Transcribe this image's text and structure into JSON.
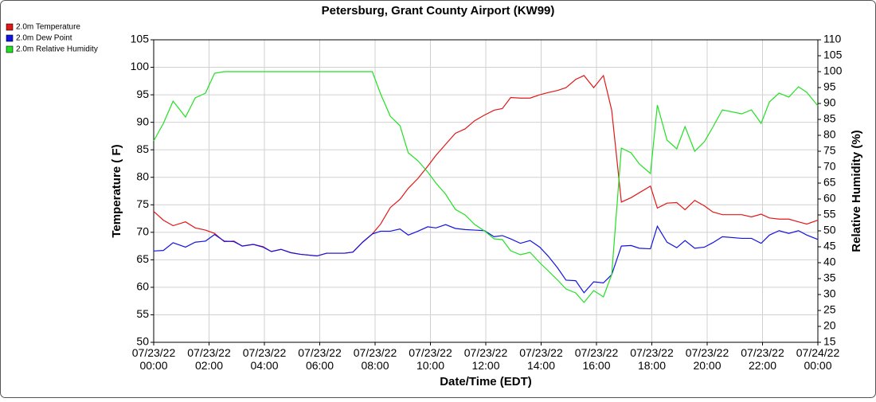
{
  "chart_data": {
    "type": "line",
    "title": "Petersburg, Grant County Airport (KW99)",
    "x_label": "Date/Time (EDT)",
    "y_label": "Temperature ( F)",
    "y2_label": "Relative Humidity (%)",
    "x": [
      0,
      0.35,
      0.7,
      1.15,
      1.5,
      1.87,
      2.2,
      2.55,
      2.9,
      3.2,
      3.6,
      3.95,
      4.25,
      4.6,
      4.95,
      5.3,
      5.9,
      6.25,
      6.9,
      7.2,
      7.55,
      7.9,
      8.2,
      8.55,
      8.9,
      9.2,
      9.55,
      9.9,
      10.2,
      10.55,
      10.9,
      11.25,
      11.6,
      11.95,
      12.3,
      12.6,
      12.9,
      13.25,
      13.6,
      13.95,
      14.25,
      14.6,
      14.9,
      15.25,
      15.55,
      15.9,
      16.25,
      16.55,
      16.9,
      17.25,
      17.55,
      17.95,
      18.2,
      18.55,
      18.9,
      19.2,
      19.55,
      19.9,
      20.2,
      20.55,
      21.25,
      21.6,
      21.95,
      22.25,
      22.6,
      22.95,
      23.3,
      23.6,
      24
    ],
    "series": [
      {
        "name": "2.0m Temperature",
        "color": "#e01818",
        "values": [
          73.8,
          72.2,
          71.2,
          71.9,
          70.8,
          70.4,
          69.8,
          68.3,
          68.4,
          67.5,
          67.8,
          67.4,
          66.5,
          66.9,
          66.3,
          66.0,
          65.7,
          66.2,
          66.2,
          66.4,
          68.2,
          69.7,
          71.5,
          74.5,
          76.0,
          78.0,
          79.8,
          82.0,
          84.0,
          86.0,
          88.0,
          88.8,
          90.3,
          91.3,
          92.2,
          92.5,
          94.5,
          94.4,
          94.4,
          95.0,
          95.4,
          95.8,
          96.3,
          97.8,
          98.5,
          96.3,
          98.5,
          92.2,
          75.5,
          76.3,
          77.2,
          78.4,
          74.4,
          75.3,
          75.4,
          74.1,
          75.8,
          74.8,
          73.7,
          73.2,
          73.2,
          72.8,
          73.3,
          72.6,
          72.4,
          72.4,
          71.9,
          71.5,
          72.2
        ]
      },
      {
        "name": "2.0m Dew Point",
        "color": "#1414e0",
        "values": [
          66.6,
          66.7,
          68.1,
          67.3,
          68.2,
          68.4,
          69.6,
          68.4,
          68.3,
          67.5,
          67.8,
          67.3,
          66.5,
          66.9,
          66.3,
          66.0,
          65.7,
          66.2,
          66.2,
          66.4,
          68.2,
          69.7,
          70.2,
          70.2,
          70.6,
          69.5,
          70.2,
          71.0,
          70.8,
          71.4,
          70.7,
          70.5,
          70.4,
          70.3,
          69.2,
          69.4,
          68.8,
          68.0,
          68.5,
          67.3,
          65.7,
          63.5,
          61.3,
          61.2,
          59.0,
          61.0,
          60.8,
          62.3,
          67.5,
          67.6,
          67.1,
          67.0,
          71.1,
          68.2,
          67.2,
          68.5,
          67.1,
          67.3,
          68.1,
          69.2,
          68.9,
          68.9,
          68.0,
          69.5,
          70.3,
          69.8,
          70.3,
          69.5,
          68.7
        ]
      },
      {
        "name": "2.0m Relative Humidity",
        "color": "#22e022",
        "axis": "y2",
        "values": [
          78.25,
          83.75,
          90.75,
          85.75,
          91.75,
          93.25,
          99.5,
          100,
          100,
          100,
          100,
          100,
          100,
          100,
          100,
          100,
          100,
          100,
          100,
          100,
          100,
          100,
          93,
          86,
          83,
          74.5,
          72,
          68.5,
          65,
          61.5,
          56.75,
          55,
          52,
          50,
          47.5,
          47.25,
          43.75,
          42.5,
          43.25,
          40,
          37.5,
          34.5,
          31.75,
          30.5,
          27.5,
          31.25,
          29.25,
          36.25,
          76,
          74.5,
          71,
          68,
          89.5,
          78.5,
          75.75,
          82.75,
          75,
          78,
          82.5,
          88,
          86.75,
          88,
          83.75,
          90.5,
          93.25,
          92,
          95.25,
          93.5,
          89.25
        ]
      }
    ],
    "xlim": [
      0,
      24
    ],
    "xticks": [
      {
        "value": 0,
        "label": "07/23/22 00:00"
      },
      {
        "value": 2,
        "label": "07/23/22 02:00"
      },
      {
        "value": 4,
        "label": "07/23/22 04:00"
      },
      {
        "value": 6,
        "label": "07/23/22 06:00"
      },
      {
        "value": 8,
        "label": "07/23/22 08:00"
      },
      {
        "value": 10,
        "label": "07/23/22 10:00"
      },
      {
        "value": 12,
        "label": "07/23/22 12:00"
      },
      {
        "value": 14,
        "label": "07/23/22 14:00"
      },
      {
        "value": 16,
        "label": "07/23/22 16:00"
      },
      {
        "value": 18,
        "label": "07/23/22 18:00"
      },
      {
        "value": 20,
        "label": "07/23/22 20:00"
      },
      {
        "value": 22,
        "label": "07/23/22 22:00"
      },
      {
        "value": 24,
        "label": "07/24/22 00:00"
      }
    ],
    "ylim": [
      50,
      105
    ],
    "yticks": [
      50,
      55,
      60,
      65,
      70,
      75,
      80,
      85,
      90,
      95,
      100,
      105
    ],
    "y2lim": [
      15,
      110
    ],
    "y2ticks": [
      15,
      20,
      25,
      30,
      35,
      40,
      45,
      50,
      55,
      60,
      65,
      70,
      75,
      80,
      85,
      90,
      95,
      100,
      105,
      110
    ],
    "grid": true,
    "legend": "top-left"
  }
}
